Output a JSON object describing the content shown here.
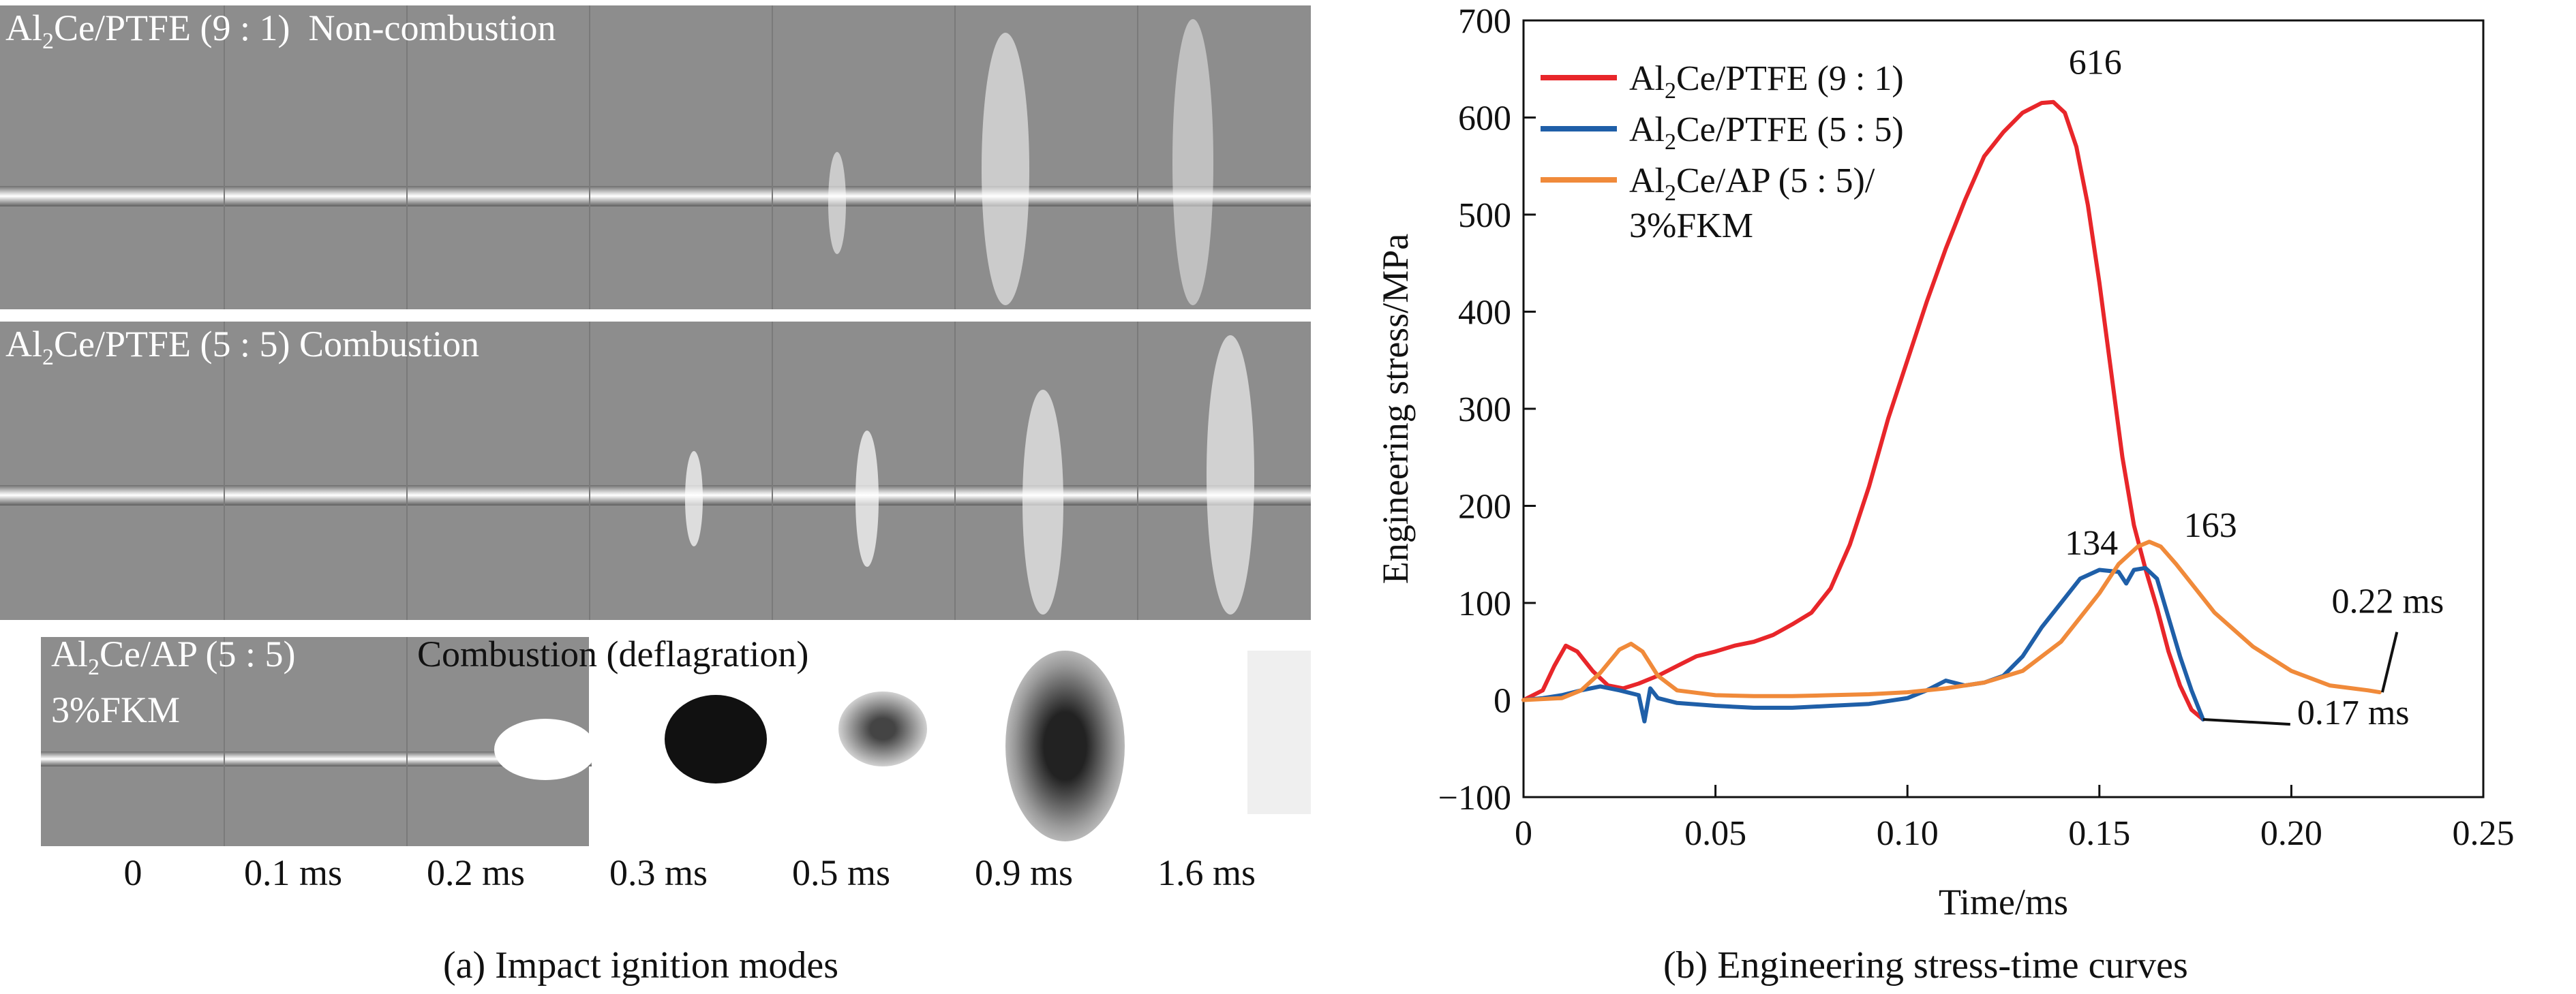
{
  "panel_a": {
    "caption": "(a) Impact ignition modes",
    "rows": [
      {
        "label_prefix": "Al",
        "label_sub": "2",
        "label_suffix": "Ce/PTFE (9 : 1)",
        "mode": "Non-combustion"
      },
      {
        "label_prefix": "Al",
        "label_sub": "2",
        "label_suffix": "Ce/PTFE (5 : 5)",
        "mode": "Combustion"
      },
      {
        "label_prefix": "Al",
        "label_sub": "2",
        "label_suffix": "Ce/AP (5 : 5)",
        "label_line2": "3%FKM",
        "mode": "Combustion (deflagration)"
      }
    ],
    "time_labels": [
      "0",
      "0.1 ms",
      "0.2 ms",
      "0.3 ms",
      "0.5 ms",
      "0.9 ms",
      "1.6 ms"
    ]
  },
  "panel_b": {
    "caption": "(b) Engineering stress-time curves"
  },
  "chart_data": {
    "type": "line",
    "title": "",
    "xlabel": "Time/ms",
    "ylabel": "Engineering stress/MPa",
    "xlim": [
      0,
      0.25
    ],
    "ylim": [
      -100,
      700
    ],
    "xticks": [
      0,
      0.05,
      0.1,
      0.15,
      0.2,
      0.25
    ],
    "xtick_labels": [
      "0",
      "0.05",
      "0.10",
      "0.15",
      "0.20",
      "0.25"
    ],
    "yticks": [
      -100,
      0,
      100,
      200,
      300,
      400,
      500,
      600,
      700
    ],
    "ytick_labels": [
      "−100",
      "0",
      "100",
      "200",
      "300",
      "400",
      "500",
      "600",
      "700"
    ],
    "legend_position": "top-left",
    "series": [
      {
        "name": "Al2Ce/PTFE (9 : 1)",
        "legend_prefix": "Al",
        "legend_sub": "2",
        "legend_suffix": "Ce/PTFE (9 : 1)",
        "color": "#e8262a",
        "x": [
          0,
          0.005,
          0.008,
          0.011,
          0.014,
          0.018,
          0.022,
          0.026,
          0.03,
          0.035,
          0.04,
          0.045,
          0.05,
          0.055,
          0.06,
          0.065,
          0.07,
          0.075,
          0.08,
          0.085,
          0.09,
          0.095,
          0.1,
          0.105,
          0.11,
          0.115,
          0.12,
          0.125,
          0.13,
          0.135,
          0.138,
          0.141,
          0.144,
          0.147,
          0.15,
          0.153,
          0.156,
          0.159,
          0.162,
          0.165,
          0.168,
          0.171,
          0.174,
          0.177
        ],
        "y": [
          0,
          10,
          35,
          56,
          50,
          30,
          15,
          12,
          17,
          25,
          35,
          45,
          50,
          56,
          60,
          67,
          78,
          90,
          115,
          160,
          220,
          290,
          350,
          410,
          465,
          515,
          560,
          585,
          605,
          615,
          616,
          605,
          570,
          510,
          430,
          340,
          250,
          180,
          135,
          95,
          50,
          15,
          -10,
          -20
        ]
      },
      {
        "name": "Al2Ce/PTFE (5 : 5)",
        "legend_prefix": "Al",
        "legend_sub": "2",
        "legend_suffix": "Ce/PTFE (5 : 5)",
        "color": "#1f5fa8",
        "x": [
          0,
          0.005,
          0.01,
          0.015,
          0.02,
          0.025,
          0.03,
          0.0315,
          0.033,
          0.035,
          0.04,
          0.05,
          0.06,
          0.07,
          0.08,
          0.09,
          0.1,
          0.105,
          0.11,
          0.115,
          0.12,
          0.125,
          0.13,
          0.135,
          0.14,
          0.145,
          0.15,
          0.155,
          0.157,
          0.159,
          0.162,
          0.165,
          0.168,
          0.171,
          0.174,
          0.177
        ],
        "y": [
          0,
          2,
          5,
          10,
          14,
          10,
          5,
          -22,
          12,
          2,
          -3,
          -6,
          -8,
          -8,
          -6,
          -4,
          2,
          10,
          20,
          15,
          18,
          25,
          45,
          75,
          100,
          125,
          134,
          132,
          120,
          134,
          136,
          125,
          85,
          45,
          10,
          -20
        ]
      },
      {
        "name": "Al2Ce/AP (5 : 5)/3%FKM",
        "legend_prefix": "Al",
        "legend_sub": "2",
        "legend_suffix": "Ce/AP (5 : 5)/",
        "legend_line2": "3%FKM",
        "color": "#f08a3a",
        "x": [
          0,
          0.01,
          0.015,
          0.02,
          0.025,
          0.028,
          0.031,
          0.035,
          0.04,
          0.05,
          0.06,
          0.07,
          0.08,
          0.09,
          0.1,
          0.11,
          0.12,
          0.13,
          0.14,
          0.15,
          0.155,
          0.16,
          0.163,
          0.166,
          0.17,
          0.175,
          0.18,
          0.19,
          0.2,
          0.21,
          0.22,
          0.223
        ],
        "y": [
          0,
          2,
          10,
          28,
          52,
          58,
          50,
          25,
          10,
          5,
          4,
          4,
          5,
          6,
          8,
          12,
          18,
          30,
          60,
          110,
          140,
          158,
          163,
          158,
          140,
          115,
          90,
          55,
          30,
          15,
          10,
          8
        ]
      }
    ],
    "annotations": [
      {
        "text": "616",
        "x": 0.142,
        "y": 645
      },
      {
        "text": "134",
        "x": 0.141,
        "y": 150
      },
      {
        "text": "163",
        "x": 0.172,
        "y": 168
      },
      {
        "text": "0.22 ms",
        "x": 0.2105,
        "y": 90
      },
      {
        "text": "0.17 ms",
        "x": 0.2015,
        "y": -25
      }
    ]
  }
}
